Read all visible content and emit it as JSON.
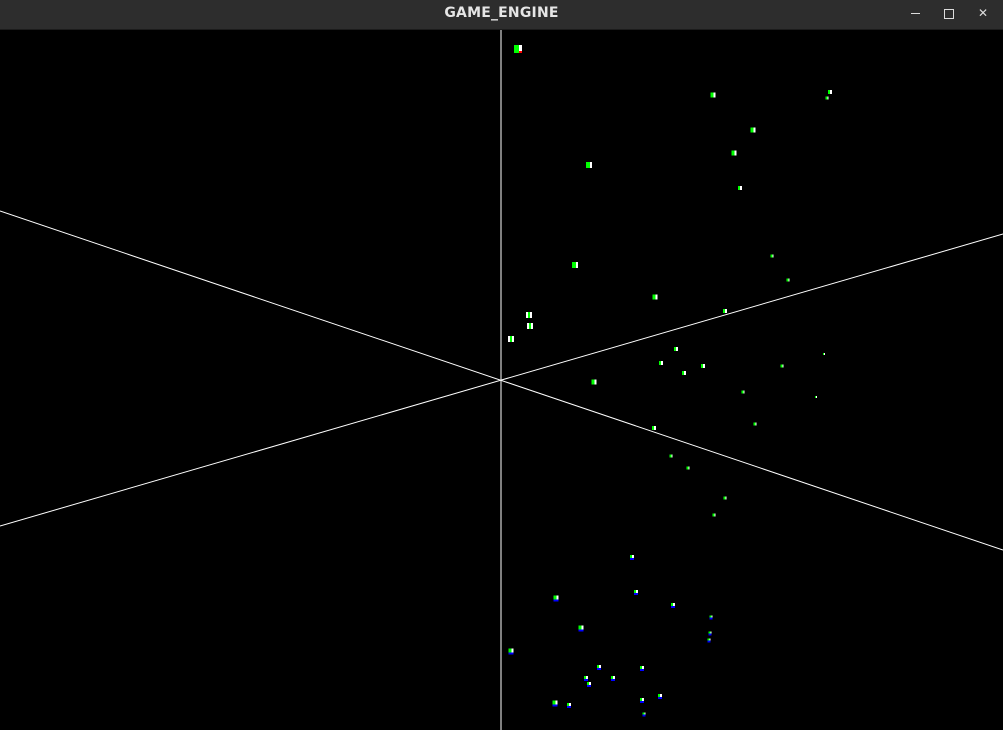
{
  "window": {
    "title": "GAME_ENGINE",
    "controls": {
      "minimize": "minimize",
      "maximize": "maximize",
      "close": "close"
    }
  },
  "scene": {
    "background": "#000000",
    "axis_color": "#ffffff",
    "cube_colors": {
      "primary": "#00ff00",
      "secondary": "#ffffff",
      "accent_red": "#ff0000",
      "accent_blue": "#0000ff"
    }
  }
}
